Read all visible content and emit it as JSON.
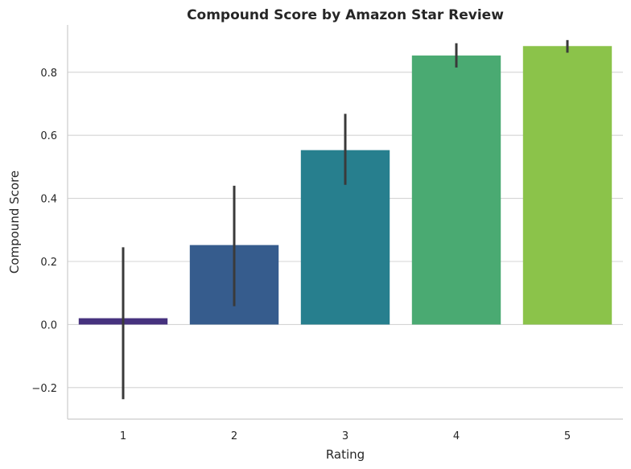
{
  "chart_data": {
    "type": "bar",
    "title": "Compound Score by Amazon Star Review",
    "xlabel": "Rating",
    "ylabel": "Compound Score",
    "categories": [
      "1",
      "2",
      "3",
      "4",
      "5"
    ],
    "values": [
      0.02,
      0.252,
      0.553,
      0.853,
      0.883
    ],
    "error_bars": [
      {
        "low": -0.237,
        "high": 0.245
      },
      {
        "low": 0.058,
        "high": 0.44
      },
      {
        "low": 0.443,
        "high": 0.668
      },
      {
        "low": 0.815,
        "high": 0.892
      },
      {
        "low": 0.862,
        "high": 0.902
      }
    ],
    "colors": [
      "#46327e",
      "#365c8d",
      "#277f8e",
      "#4aaa72",
      "#8bc34a"
    ],
    "error_color": "#3a3a3a",
    "ylim": [
      -0.3,
      0.95
    ],
    "yticks": [
      -0.2,
      0.0,
      0.2,
      0.4,
      0.6,
      0.8
    ],
    "ytick_labels": [
      "−0.2",
      "0.0",
      "0.2",
      "0.4",
      "0.6",
      "0.8"
    ],
    "grid": "horizontal"
  }
}
